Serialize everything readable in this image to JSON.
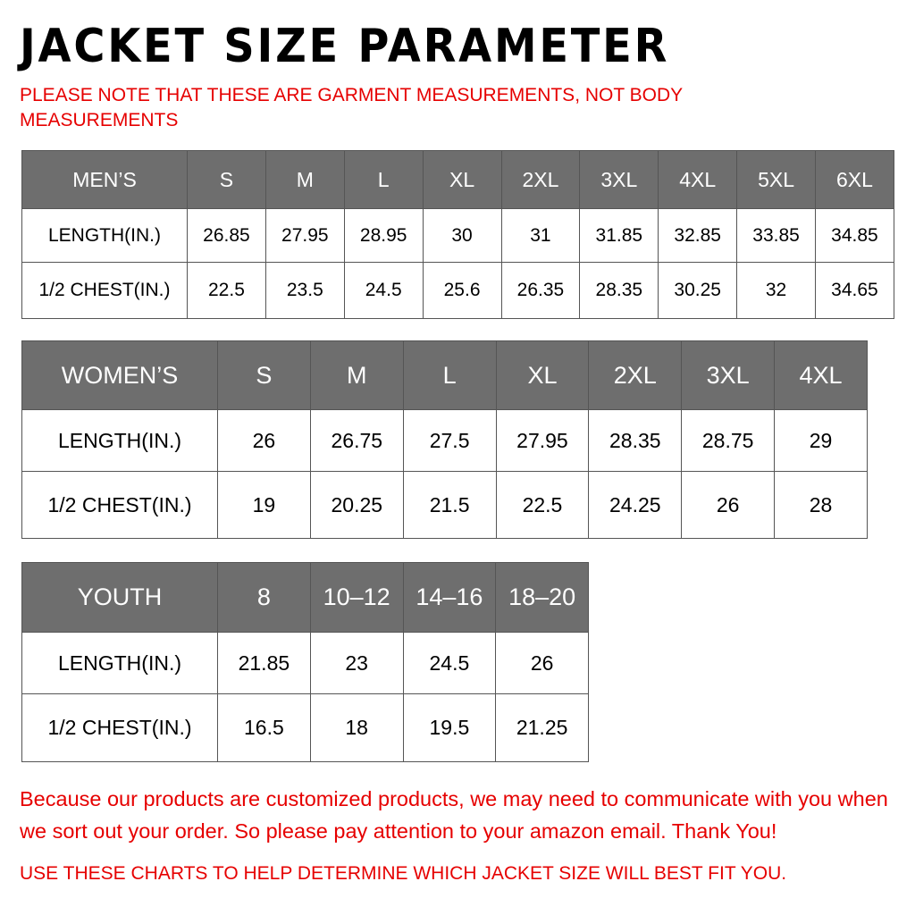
{
  "title": "JACKET SIZE PARAMETER",
  "note": "PLEASE NOTE THAT THESE ARE GARMENT MEASUREMENTS, NOT BODY MEASUREMENTS",
  "tables": {
    "men": {
      "header": [
        "MEN’S",
        "S",
        "M",
        "L",
        "XL",
        "2XL",
        "3XL",
        "4XL",
        "5XL",
        "6XL"
      ],
      "rows": [
        [
          "LENGTH(IN.)",
          "26.85",
          "27.95",
          "28.95",
          "30",
          "31",
          "31.85",
          "32.85",
          "33.85",
          "34.85"
        ],
        [
          "1/2 CHEST(IN.)",
          "22.5",
          "23.5",
          "24.5",
          "25.6",
          "26.35",
          "28.35",
          "30.25",
          "32",
          "34.65"
        ]
      ]
    },
    "women": {
      "header": [
        "WOMEN’S",
        "S",
        "M",
        "L",
        "XL",
        "2XL",
        "3XL",
        "4XL"
      ],
      "rows": [
        [
          "LENGTH(IN.)",
          "26",
          "26.75",
          "27.5",
          "27.95",
          "28.35",
          "28.75",
          "29"
        ],
        [
          "1/2 CHEST(IN.)",
          "19",
          "20.25",
          "21.5",
          "22.5",
          "24.25",
          "26",
          "28"
        ]
      ]
    },
    "youth": {
      "header": [
        "YOUTH",
        "8",
        "10–12",
        "14–16",
        "18–20"
      ],
      "rows": [
        [
          "LENGTH(IN.)",
          "21.85",
          "23",
          "24.5",
          "26"
        ],
        [
          "1/2 CHEST(IN.)",
          "16.5",
          "18",
          "19.5",
          "21.25"
        ]
      ]
    }
  },
  "footer": {
    "message": "Because our products are customized products, we may need to communicate with you when we sort out your order. So please pay attention to your amazon email. Thank You!",
    "instruction": "USE THESE CHARTS TO HELP DETERMINE WHICH JACKET SIZE WILL BEST FIT YOU."
  },
  "colors": {
    "header_bg": "#6e6e6e",
    "accent_red": "#e60000"
  }
}
